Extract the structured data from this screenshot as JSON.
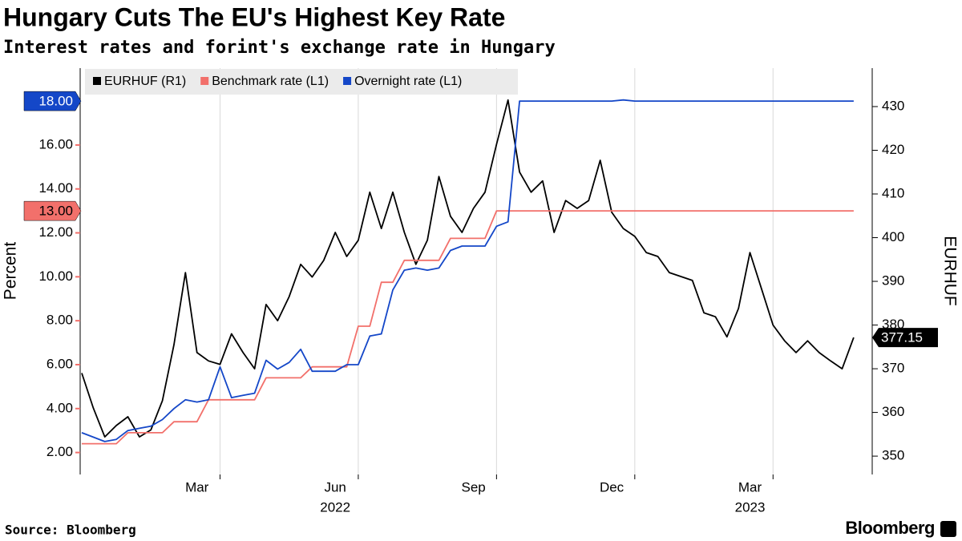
{
  "chart_data": {
    "type": "line",
    "title": "Hungary Cuts The EU's Highest Key Rate",
    "subtitle": "Interest rates and forint's exchange rate in Hungary",
    "source": "Source: Bloomberg",
    "brand": "Bloomberg",
    "ylabel": "Percent",
    "y2label": "EURHUF",
    "legend": "top-left",
    "grid": true,
    "xlim": [
      0,
      17.1
    ],
    "xticks": [
      3,
      6,
      9,
      12,
      15
    ],
    "xticklabels": [
      {
        "value": 2.5,
        "label": "Mar"
      },
      {
        "value": 5.5,
        "label": "Jun"
      },
      {
        "value": 8.5,
        "label": "Sep"
      },
      {
        "value": 11.5,
        "label": "Dec"
      },
      {
        "value": 14.5,
        "label": "Mar"
      }
    ],
    "xyearlabels": [
      {
        "value": 5.5,
        "label": "2022"
      },
      {
        "value": 14.5,
        "label": "2023"
      }
    ],
    "ylim": [
      1,
      19.5
    ],
    "yticks": [
      {
        "value": 2,
        "label": "2.00"
      },
      {
        "value": 4,
        "label": "4.00"
      },
      {
        "value": 6,
        "label": "6.00"
      },
      {
        "value": 8,
        "label": "8.00"
      },
      {
        "value": 10,
        "label": "10.00"
      },
      {
        "value": 12,
        "label": "12.00"
      },
      {
        "value": 14,
        "label": "14.00"
      },
      {
        "value": 16,
        "label": "16.00"
      }
    ],
    "y2lim": [
      345.8,
      438.8
    ],
    "y2ticks": [
      350,
      360,
      370,
      380,
      390,
      400,
      410,
      420,
      430
    ],
    "x": [
      0,
      0.25,
      0.5,
      0.75,
      1,
      1.25,
      1.5,
      1.75,
      2,
      2.25,
      2.5,
      2.75,
      3,
      3.25,
      3.5,
      3.75,
      4,
      4.25,
      4.5,
      4.75,
      5,
      5.25,
      5.5,
      5.75,
      6,
      6.25,
      6.5,
      6.75,
      7,
      7.25,
      7.5,
      7.75,
      8,
      8.25,
      8.5,
      8.75,
      9,
      9.25,
      9.5,
      9.75,
      10,
      10.25,
      10.5,
      10.75,
      11,
      11.25,
      11.5,
      11.75,
      12,
      12.25,
      12.5,
      12.75,
      13,
      13.25,
      13.5,
      13.75,
      14,
      14.25,
      14.5,
      14.75,
      15,
      15.25,
      15.5,
      15.75,
      16,
      16.25,
      16.5,
      16.75
    ],
    "series": [
      {
        "name": "EURHUF (R1)",
        "color": "#000000",
        "axis": "y2",
        "last_label": "377.15",
        "values": [
          369,
          361,
          354.4,
          357,
          359,
          354.4,
          356,
          362.7,
          375.5,
          392,
          373.7,
          371.8,
          371,
          378,
          373.7,
          370,
          384.7,
          381,
          386.5,
          393.9,
          391,
          394.8,
          401.2,
          395.7,
          399.4,
          410.4,
          402.1,
          410.4,
          401.2,
          393.9,
          399.4,
          414,
          404.9,
          401.2,
          406.7,
          410.4,
          421.4,
          431.5,
          415,
          410.4,
          413,
          401.2,
          408.5,
          406.7,
          408.5,
          417.7,
          405.8,
          402.1,
          400.3,
          396.6,
          395.7,
          392,
          391.1,
          390.2,
          382.8,
          381.9,
          377.3,
          383.8,
          396.6,
          388.3,
          380,
          376.4,
          373.7,
          376.4,
          373.7,
          371.8,
          370,
          377.15
        ]
      },
      {
        "name": "Benchmark rate (L1)",
        "color": "#f2706b",
        "axis": "y",
        "last_label": "13.00",
        "values": [
          2.4,
          2.4,
          2.4,
          2.4,
          2.9,
          2.9,
          2.9,
          2.9,
          3.4,
          3.4,
          3.4,
          4.4,
          4.4,
          4.4,
          4.4,
          4.4,
          5.4,
          5.4,
          5.4,
          5.4,
          5.9,
          5.9,
          5.9,
          5.9,
          7.75,
          7.75,
          9.75,
          9.75,
          10.75,
          10.75,
          10.75,
          10.75,
          11.75,
          11.75,
          11.75,
          11.75,
          13,
          13,
          13,
          13,
          13,
          13,
          13,
          13,
          13,
          13,
          13,
          13,
          13,
          13,
          13,
          13,
          13,
          13,
          13,
          13,
          13,
          13,
          13,
          13,
          13,
          13,
          13,
          13,
          13,
          13,
          13,
          13
        ]
      },
      {
        "name": "Overnight rate (L1)",
        "color": "#1447c8",
        "axis": "y",
        "last_label": "18.00",
        "values": [
          2.9,
          2.7,
          2.5,
          2.6,
          3.0,
          3.1,
          3.2,
          3.5,
          4.0,
          4.4,
          4.3,
          4.4,
          5.9,
          4.5,
          4.6,
          4.7,
          6.2,
          5.8,
          6.1,
          6.7,
          5.7,
          5.7,
          5.7,
          6.0,
          6.0,
          7.3,
          7.4,
          9.4,
          10.3,
          10.4,
          10.3,
          10.4,
          11.2,
          11.4,
          11.4,
          11.4,
          12.3,
          12.5,
          18,
          18,
          18,
          18,
          18,
          18,
          18,
          18,
          18,
          18.05,
          18,
          18,
          18,
          18,
          18,
          18,
          18,
          18,
          18,
          18,
          18,
          18,
          18,
          18,
          18,
          18,
          18,
          18,
          18,
          18
        ]
      }
    ]
  }
}
